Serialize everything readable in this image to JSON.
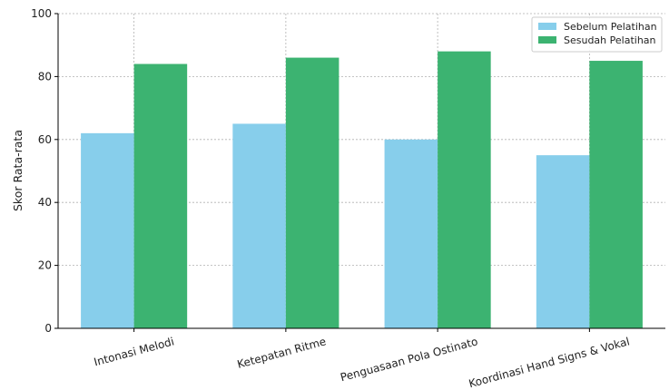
{
  "chart_data": {
    "type": "bar",
    "title": "",
    "xlabel": "",
    "ylabel": "Skor Rata-rata",
    "ylim": [
      0,
      100
    ],
    "yticks": [
      0,
      20,
      40,
      60,
      80,
      100
    ],
    "grid": true,
    "legend_position": "top-right",
    "categories": [
      "Intonasi Melodi",
      "Ketepatan Ritme",
      "Penguasaan Pola Ostinato",
      "Koordinasi Hand Signs & Vokal"
    ],
    "series": [
      {
        "name": "Sebelum Pelatihan",
        "color": "#87ceeb",
        "values": [
          62,
          65,
          60,
          55
        ]
      },
      {
        "name": "Sesudah Pelatihan",
        "color": "#3cb371",
        "values": [
          84,
          86,
          88,
          85
        ]
      }
    ]
  }
}
